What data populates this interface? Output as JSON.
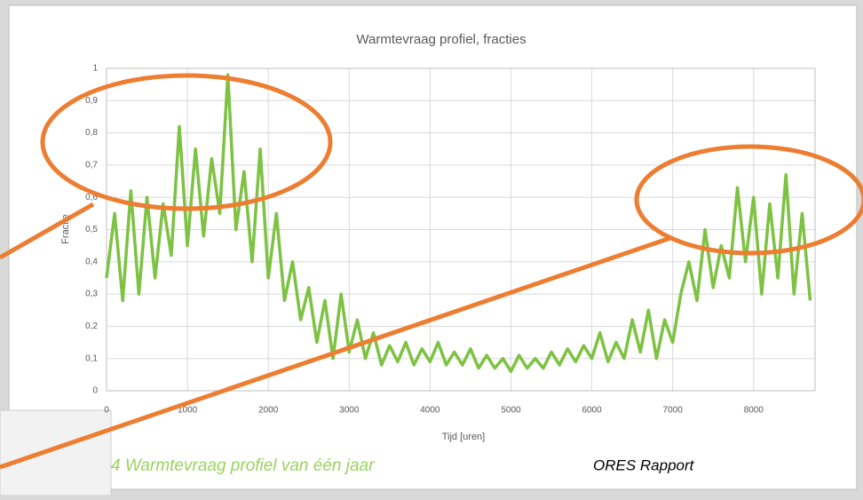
{
  "chart_data": {
    "type": "line",
    "title": "Warmtevraag profiel, fracties",
    "xlabel": "Tijd [uren]",
    "ylabel": "Fractie",
    "x": [
      0,
      100,
      200,
      300,
      400,
      500,
      600,
      700,
      800,
      900,
      1000,
      1100,
      1200,
      1300,
      1400,
      1500,
      1600,
      1700,
      1800,
      1900,
      2000,
      2100,
      2200,
      2300,
      2400,
      2500,
      2600,
      2700,
      2800,
      2900,
      3000,
      3100,
      3200,
      3300,
      3400,
      3500,
      3600,
      3700,
      3800,
      3900,
      4000,
      4100,
      4200,
      4300,
      4400,
      4500,
      4600,
      4700,
      4800,
      4900,
      5000,
      5100,
      5200,
      5300,
      5400,
      5500,
      5600,
      5700,
      5800,
      5900,
      6000,
      6100,
      6200,
      6300,
      6400,
      6500,
      6600,
      6700,
      6800,
      6900,
      7000,
      7100,
      7200,
      7300,
      7400,
      7500,
      7600,
      7700,
      7800,
      7900,
      8000,
      8100,
      8200,
      8300,
      8400,
      8500,
      8600,
      8700
    ],
    "series": [
      {
        "name": "Fractie",
        "color": "#7dc242",
        "values": [
          0.35,
          0.55,
          0.28,
          0.62,
          0.3,
          0.6,
          0.35,
          0.58,
          0.42,
          0.82,
          0.45,
          0.75,
          0.48,
          0.72,
          0.55,
          0.98,
          0.5,
          0.68,
          0.4,
          0.75,
          0.35,
          0.55,
          0.28,
          0.4,
          0.22,
          0.32,
          0.15,
          0.28,
          0.1,
          0.3,
          0.12,
          0.22,
          0.1,
          0.18,
          0.08,
          0.14,
          0.09,
          0.15,
          0.08,
          0.13,
          0.09,
          0.15,
          0.08,
          0.12,
          0.08,
          0.13,
          0.07,
          0.11,
          0.07,
          0.1,
          0.06,
          0.11,
          0.07,
          0.1,
          0.07,
          0.12,
          0.08,
          0.13,
          0.09,
          0.14,
          0.1,
          0.18,
          0.09,
          0.15,
          0.1,
          0.22,
          0.12,
          0.25,
          0.1,
          0.22,
          0.15,
          0.3,
          0.4,
          0.28,
          0.5,
          0.32,
          0.45,
          0.35,
          0.63,
          0.4,
          0.6,
          0.3,
          0.58,
          0.35,
          0.67,
          0.3,
          0.55,
          0.28
        ]
      }
    ],
    "xlim": [
      0,
      8760
    ],
    "xticks": [
      0,
      1000,
      2000,
      3000,
      4000,
      5000,
      6000,
      7000,
      8000
    ],
    "ylim": [
      0,
      1
    ],
    "yticks": [
      0,
      {
        "value": 0.1,
        "label": "0,1"
      },
      {
        "value": 0.2,
        "label": "0,2"
      },
      {
        "value": 0.3,
        "label": "0,3"
      },
      {
        "value": 0.4,
        "label": "0,4"
      },
      {
        "value": 0.5,
        "label": "0,5"
      },
      {
        "value": 0.6,
        "label": "0,6"
      },
      {
        "value": 0.7,
        "label": "0,7"
      },
      {
        "value": 0.8,
        "label": "0,8"
      },
      {
        "value": 0.9,
        "label": "0,9"
      },
      1
    ],
    "grid": true
  },
  "caption": "4 Warmtevraag profiel van één jaar",
  "source": "ORES Rapport"
}
